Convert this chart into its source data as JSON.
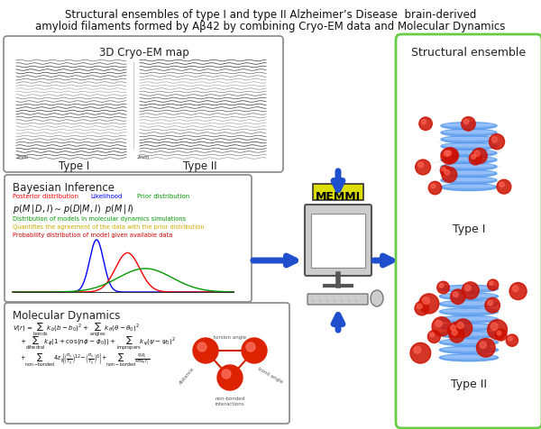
{
  "title_line1": "Structural ensembles of type I and type II Alzheimer’s Disease  brain-derived",
  "title_line2": "amyloid filaments formed by Aβ42 by combining Cryo-EM data and Molecular Dynamics",
  "title_fontsize": 8.5,
  "bg_color": "#ffffff",
  "cryo_em_label": "3D Cryo-EM map",
  "type1_label": "Type I",
  "type2_label": "Type II",
  "bayesian_title": "Bayesian Inference",
  "md_title": "Molecular Dynamics",
  "memmi_label": "MEMMI",
  "structural_ensemble_label": "Structural ensemble",
  "struct_type1_label": "Type I",
  "struct_type2_label": "Type II",
  "arrow_color": "#1f4fcc",
  "memmi_bg": "#dddd00",
  "box_cryo_color": "#888888",
  "box_struct_color": "#66cc44",
  "bayesian_colors": {
    "posterior": "#ff0000",
    "likelihood": "#0000ff",
    "prior": "#009900"
  },
  "fig_width": 6.0,
  "fig_height": 4.77,
  "dpi": 100
}
